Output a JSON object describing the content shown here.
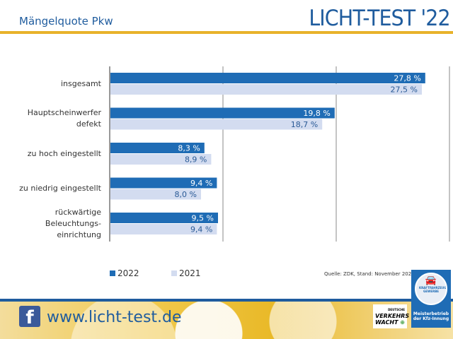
{
  "header": {
    "subtitle": "Mängelquote Pkw",
    "title": "LICHT-TEST '22"
  },
  "chart_data": {
    "type": "bar",
    "orientation": "horizontal",
    "categories": [
      "insgesamt",
      "Hauptscheinwerfer defekt",
      "zu hoch eingestellt",
      "zu niedrig eingestellt",
      "rückwärtige Beleuchtungs-einrichtung"
    ],
    "category_lines": [
      [
        "insgesamt"
      ],
      [
        "Hauptscheinwerfer",
        "defekt"
      ],
      [
        "zu hoch eingestellt"
      ],
      [
        "zu niedrig eingestellt"
      ],
      [
        "rückwärtige",
        "Beleuchtungs-",
        "einrichtung"
      ]
    ],
    "series": [
      {
        "name": "2022",
        "color": "#1f6cb5",
        "values": [
          27.8,
          19.8,
          8.3,
          9.4,
          9.5
        ],
        "labels": [
          "27,8 %",
          "19,8 %",
          "8,3 %",
          "9,4 %",
          "9,5 %"
        ]
      },
      {
        "name": "2021",
        "color": "#d3dcf0",
        "values": [
          27.5,
          18.7,
          8.9,
          8.0,
          9.4
        ],
        "labels": [
          "27,5 %",
          "18,7 %",
          "8,9 %",
          "8,0 %",
          "9,4 %"
        ]
      }
    ],
    "xlim": [
      0,
      30
    ],
    "grid": true,
    "legend": "bottom-left",
    "unit": "%"
  },
  "source": "Quelle: ZDK, Stand: November 2022",
  "footer": {
    "url": "www.licht-test.de",
    "facebook": "f",
    "vw_logo": "DEUTSCHE VERKEHRS WACHT",
    "badge_ring": "KRAFTFAHRZEUG GEWERBE",
    "badge_text": "Meisterbetrieb der Kfz-Innung"
  }
}
